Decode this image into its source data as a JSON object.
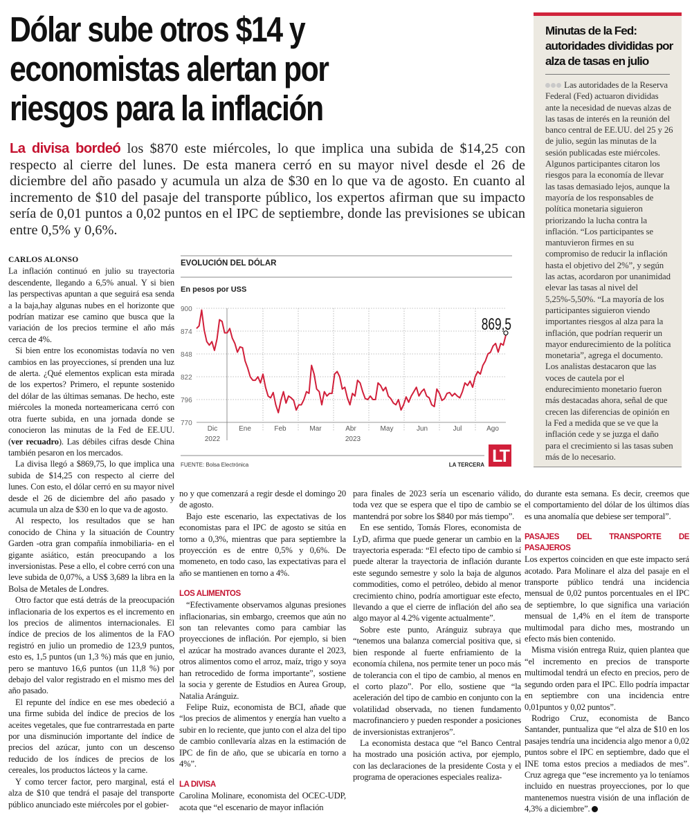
{
  "headline": [
    "Dólar sube otros $14 y",
    "economistas alertan por",
    "riesgos para la inflación"
  ],
  "lead": {
    "highlight": "La divisa bordeó",
    "text": " los $870 este miércoles, lo que implica una subida de $14,25 con respecto al cierre del lunes. De esta manera cerró en su mayor nivel desde el 26 de diciembre del año pasado y acumula un alza de $30 en lo que va de agosto. En cuanto al incremento de $10 del pasaje del transporte público, los expertos afirman que su impacto sería de 0,01 puntos a 0,02 puntos en el IPC de septiembre, donde las previsiones se ubican entre 0,5% y 0,6%."
  },
  "byline": "CARLOS ALONSO",
  "body": {
    "p1": "La inflación continuó en julio su trayectoria descendente, llegando a 6,5% anual. Y si bien las perspectivas apuntan a que seguirá esa senda a la baja,hay algunas nubes en el horizonte que podrían matizar ese camino que busca que la variación de los precios termine el año más cerca de 4%.",
    "p2a": "Si bien entre los economistas todavía no ven cambios en las proyecciones, sí prenden una luz de alerta. ¿Qué elementos explican esta mirada de los expertos? Primero, el repunte sostenido del dólar de las últimas semanas. De hecho, este miércoles la moneda norteamericana cerró con otra fuerte subida, en una jornada donde se conocieron las minutas de la Fed de EE.UU. (",
    "p2_link": "ver recuadro",
    "p2b": "). Las débiles cifras desde China también pesaron en los mercados.",
    "p3": "La divisa llegó a $869,75, lo que implica una subida de $14,25 con respecto al cierre del lunes. Con esto, el dólar cerró en su mayor nivel desde el 26 de diciembre del año pasado y acumula un alza de $30 en lo que va de agosto.",
    "p4": "Al respecto, los resultados que se han conocido de China y la situación de Country Garden -otra gran compañía inmobiliaria- en el gigante asiático, están preocupando a los inversionistas. Pese a ello, el cobre cerró con una leve subida de 0,07%, a US$ 3,689 la libra en la Bolsa de Metales de Londres.",
    "p5": "Otro factor que está detrás de la preocupación inflacionaria de los expertos es el incremento en los precios de alimentos internacionales. El índice de precios de los alimentos de la FAO registró en julio un promedio de 123,9 puntos, esto es, 1,5 puntos (un 1,3 %) más que en junio, pero se mantuvo 16,6 puntos (un 11,8 %) por debajo del valor registrado en el mismo mes del año pasado.",
    "p6": "El repunte del índice en ese mes obedeció a una firme subida del índice de precios de los aceites vegetales, que fue contrarrestada en parte por una disminución importante del índice de precios del azúcar, junto con un descenso reducido de los índices de precios de los cereales, los productos lácteos y la carne.",
    "p7": "Y como tercer factor, pero marginal, está el alza de $10 que tendrá el pasaje del transporte público anunciado este miércoles por el gobier-",
    "p8": "no y que comenzará a regir desde el domingo 20 de agosto.",
    "p9": "Bajo este escenario, las expectativas de los economistas para el IPC de agosto se sitúa en torno a 0,3%, mientras que para septiembre la proyección es de entre 0,5% y 0,6%. De momeneto, en todo caso, las expectativas para el año se mantienen en torno a 4%.",
    "sub1": "LOS ALIMENTOS",
    "p10": "“Efectivamente observamos algunas presiones inflacionarias, sin embargo, creemos que aún no son tan relevantes como para cambiar las proyecciones de inflación. Por ejemplo, si bien el azúcar ha mostrado avances durante el 2023, otros alimentos como el arroz, maíz, trigo y soya han retrocedido de forma importante”, sostiene la socia y gerente de Estudios en Aurea Group, Natalia Aránguiz.",
    "p11": "Felipe Ruiz, economista de BCI, añade que “los precios de alimentos y energía han vuelto a subir en lo reciente, que junto con el alza del tipo de cambio conllevaría alzas en la estimación de IPC de fin de año, que se ubicaría en torno a 4%”.",
    "sub2": "LA DIVISA",
    "p12": "Carolina Molinare, economista del OCEC-UDP, acota que “el escenario de mayor inflación",
    "p13": "para finales de 2023 sería un escenario válido, toda vez que se espera que el tipo de cambio se mantendrá por sobre los $840 por más tiempo”.",
    "p14": "En ese sentido, Tomás Flores, economista de LyD, afirma que puede generar un cambio en la trayectoria esperada: “El efecto tipo de cambio sí puede alterar la trayectoria de inflación durante este segundo semestre y solo la baja de algunos commodities, como el petróleo, debido al menor crecimiento chino, podría amortiguar este efecto, llevando a que el cierre de inflación del año sea algo mayor al 4.2% vigente actualmente”.",
    "p15": "Sobre este punto, Aránguiz subraya que “tenemos una balanza comercial positiva que, si bien responde al fuerte enfriamiento de la economía chilena, nos permite tener un poco más de tolerancia con el tipo de cambio, al menos en el corto plazo”. Por ello, sostiene que “la aceleración del tipo de cambio en conjunto con la volatilidad observada, no tienen fundamento macrofinanciero y pueden responder a posiciones de inversionistas extranjeros”.",
    "p16": "La economista destaca que “el Banco Central ha mostrado una posición activa, por ejemplo, con las declaraciones de la presidente Costa y el programa de operaciones especiales realiza-",
    "p17": "do durante esta semana. Es decir, creemos que el comportamiento del dólar de los últimos días es una anomalía que debiese ser temporal”.",
    "sub3": "PASAJES DEL TRANSPORTE DE PASAJEROS",
    "p18": "Los expertos coinciden en que este impacto será acotado. Para Molinare el alza del pasaje en el transporte público tendrá una incidencia mensual de 0,02 puntos porcentuales en el IPC de septiembre, lo que significa una variación mensual de 1,4% en el ítem de transporte multimodal para dicho mes, mostrando un efecto más bien contenido.",
    "p19": "Misma visión entrega Ruiz, quien plantea que “el incremento en precios de transporte multimodal tendrá un efecto en precios, pero de segundo orden para el IPC. Ello podría impactar en septiembre con una incidencia entre 0,01puntos y 0,02 puntos”.",
    "p20": "Rodrigo Cruz, economista de Banco Santander, puntualiza que “el alza de $10 en los pasajes tendría una incidencia algo menor a 0,02 puntos sobre el IPC en septiembre, dado que el INE toma estos precios a mediados de mes”. Cruz agrega que “ese incremento ya lo teníamos incluido en nuestras proyecciones, por lo que mantenemos nuestra visión de una inflación de 4,3% a diciembre”."
  },
  "sidebar": {
    "title": "Minutas de la Fed: autoridades divididas por alza de tasas en julio",
    "body": "Las autoridades de la Reserva Federal (Fed) actuaron divididas ante la necesidad de nuevas alzas de las tasas de interés en la reunión del banco central de EE.UU. del 25 y 26 de julio, según las minutas de la sesión publicadas este miércoles. Algunos participantes citaron los riesgos para la economía de llevar las tasas demasiado lejos, aunque la mayoría de los responsables de política monetaria siguieron priorizando la lucha contra la inflación. “Los participantes se mantuvieron firmes en su compromiso de reducir la inflación hasta el objetivo del 2%”, y según las actas, acordaron por unanimidad elevar las tasas al nivel del 5,25%-5,50%. “La mayoría de los participantes siguieron viendo importantes riesgos al alza para la inflación, que podrían requerir un mayor endurecimiento de la política monetaria”, agrega el documento. Los analistas destacaron que las voces de cautela por el endurecimiento monetario fueron más destacadas ahora, señal de que crecen las diferencias de opinión en la Fed a medida que se ve que la inflación cede y se juzga el daño para el crecimiento si las tasas suben más de lo necesario."
  },
  "colors": {
    "accent": "#c4122f",
    "line": "#d11f3a",
    "sidebar_bg": "#ece9e1"
  },
  "chart_data": {
    "type": "line",
    "title": "EVOLUCIÓN DEL DÓLAR",
    "subtitle": "En pesos por USS",
    "ylim": [
      770,
      900
    ],
    "yticks": [
      "900",
      "874",
      "848",
      "822",
      "796",
      "770"
    ],
    "months": [
      "Dic",
      "Ene",
      "Feb",
      "Mar",
      "Abr",
      "May",
      "Jun",
      "Jul",
      "Ago"
    ],
    "years": [
      "2022",
      "2023"
    ],
    "last_label": "869,5",
    "source": "FUENTE: Bolsa Electrónica",
    "brand": "LA TERCERA",
    "logo": "LT",
    "x_range": "late Nov 2022 – mid Aug 2023",
    "values": [
      877,
      880,
      898,
      875,
      862,
      858,
      862,
      852,
      865,
      887,
      885,
      872,
      872,
      877,
      866,
      860,
      850,
      856,
      855,
      840,
      832,
      822,
      818,
      818,
      822,
      815,
      825,
      810,
      800,
      798,
      804,
      790,
      781,
      795,
      805,
      792,
      800,
      798,
      795,
      784,
      790,
      790,
      796,
      805,
      803,
      835,
      825,
      808,
      805,
      790,
      805,
      800,
      803,
      803,
      825,
      828,
      822,
      808,
      810,
      798,
      790,
      803,
      800,
      818,
      815,
      805,
      797,
      796,
      800,
      796,
      796,
      815,
      812,
      806,
      810,
      800,
      797,
      792,
      790,
      796,
      784,
      790,
      799,
      793,
      800,
      805,
      810,
      800,
      805,
      808,
      800,
      798,
      790,
      788,
      808,
      803,
      795,
      797,
      803,
      804,
      800,
      803,
      800,
      798,
      805,
      815,
      812,
      817,
      810,
      822,
      828,
      825,
      835,
      840,
      848,
      850,
      857,
      860,
      850,
      860,
      858,
      869.5
    ]
  }
}
